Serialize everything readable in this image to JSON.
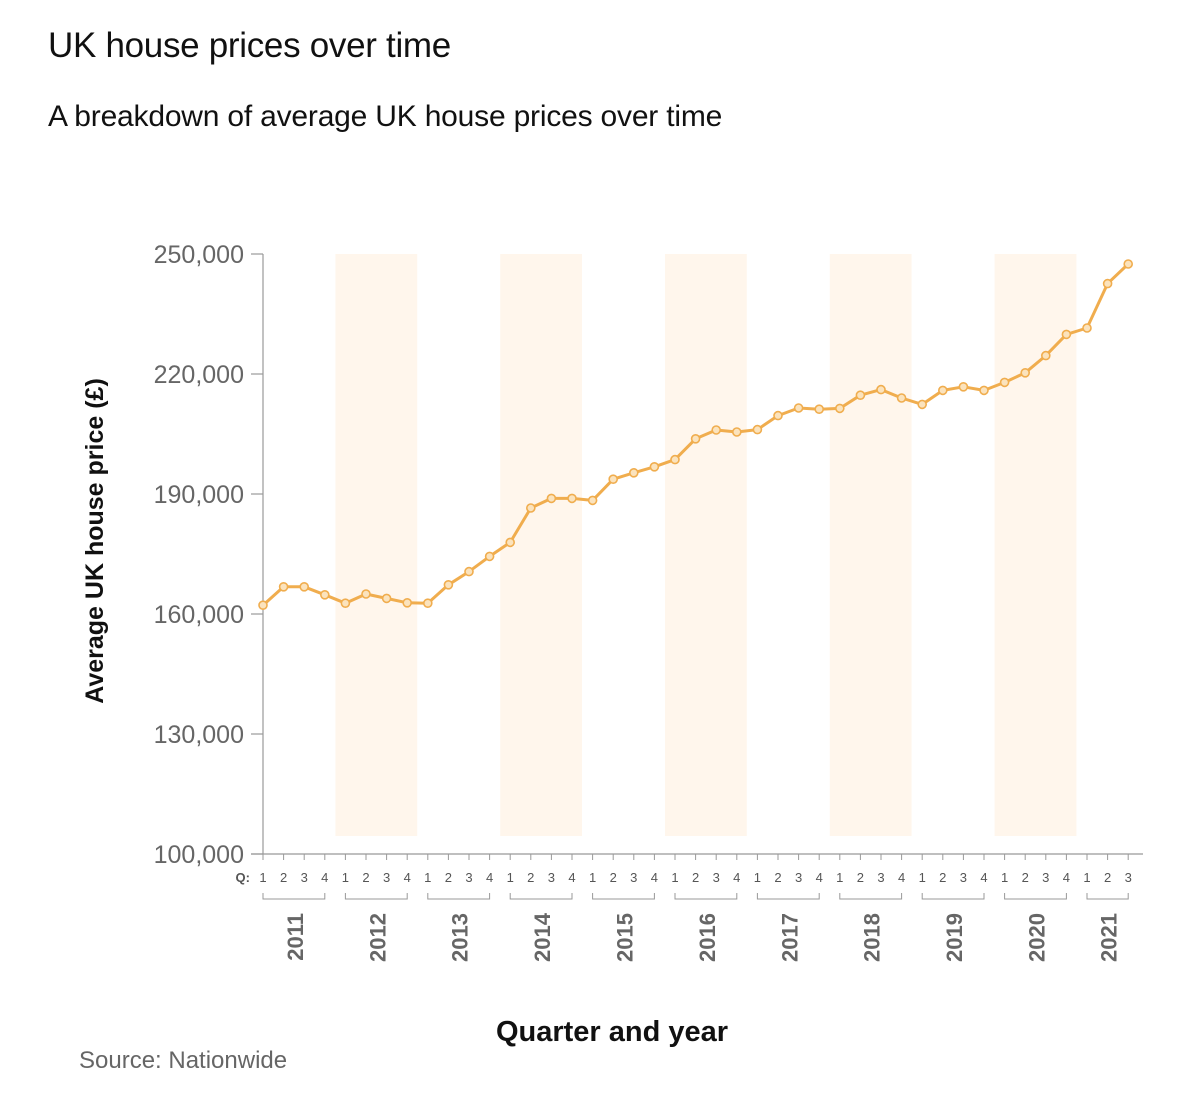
{
  "header": {
    "title": "UK house prices over time",
    "subtitle": "A breakdown of average UK house prices over time"
  },
  "footer": {
    "source": "Source: Nationwide"
  },
  "colors": {
    "line": "#f0ad4e",
    "band": "#fff6ec",
    "axis": "#999999",
    "text": "#555555"
  },
  "chart_data": {
    "type": "line",
    "xlabel": "Quarter and year",
    "ylabel": "Average UK house price (£)",
    "ylim": [
      100000,
      250000
    ],
    "yticks": [
      "100,000",
      "130,000",
      "160,000",
      "190,000",
      "220,000",
      "250,000"
    ],
    "quarter_prefix": "Q:",
    "quarters_per_year": [
      "1",
      "2",
      "3",
      "4"
    ],
    "years": [
      "2011",
      "2012",
      "2013",
      "2014",
      "2015",
      "2016",
      "2017",
      "2018",
      "2019",
      "2020",
      "2021"
    ],
    "shaded_years": [
      "2012",
      "2014",
      "2016",
      "2018",
      "2020"
    ],
    "legend": "none",
    "grid": false,
    "series": [
      {
        "values": [
          162200,
          166800,
          166800,
          164800,
          162700,
          165000,
          163900,
          162800,
          162700,
          167300,
          170600,
          174400,
          177900,
          186500,
          188900,
          188900,
          188400,
          193700,
          195300,
          196800,
          198600,
          203800,
          206000,
          205500,
          206100,
          209600,
          211500,
          211200,
          211400,
          214700,
          216100,
          214000,
          212400,
          215900,
          216800,
          215900,
          217900,
          220300,
          224600,
          229900,
          231500,
          242600,
          247500
        ]
      }
    ]
  }
}
